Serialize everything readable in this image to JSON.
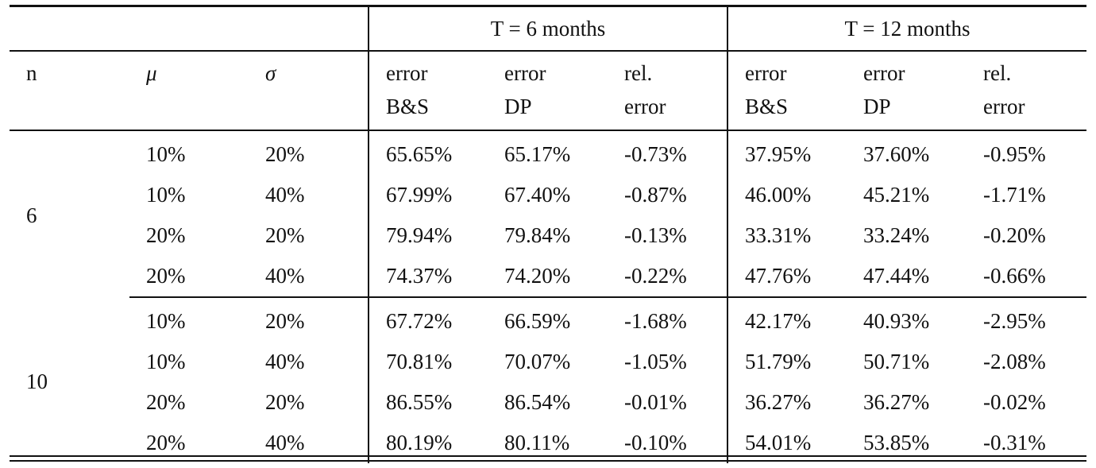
{
  "groups": {
    "t6": "T = 6 months",
    "t12": "T = 12 months"
  },
  "headers": {
    "n": "n",
    "mu": "μ",
    "sigma": "σ",
    "t6": {
      "err_bs": [
        "error",
        "B&S"
      ],
      "err_dp": [
        "error",
        "DP"
      ],
      "rel": [
        "rel.",
        "error"
      ]
    },
    "t12": {
      "err_bs": [
        "error",
        "B&S"
      ],
      "err_dp": [
        "error",
        "DP"
      ],
      "rel": [
        "rel.",
        "error"
      ]
    }
  },
  "blocks": [
    {
      "n": "6",
      "rows": [
        {
          "mu": "10%",
          "sigma": "20%",
          "t6": [
            "65.65%",
            "65.17%",
            "-0.73%"
          ],
          "t12": [
            "37.95%",
            "37.60%",
            "-0.95%"
          ]
        },
        {
          "mu": "10%",
          "sigma": "40%",
          "t6": [
            "67.99%",
            "67.40%",
            "-0.87%"
          ],
          "t12": [
            "46.00%",
            "45.21%",
            "-1.71%"
          ]
        },
        {
          "mu": "20%",
          "sigma": "20%",
          "t6": [
            "79.94%",
            "79.84%",
            "-0.13%"
          ],
          "t12": [
            "33.31%",
            "33.24%",
            "-0.20%"
          ]
        },
        {
          "mu": "20%",
          "sigma": "40%",
          "t6": [
            "74.37%",
            "74.20%",
            "-0.22%"
          ],
          "t12": [
            "47.76%",
            "47.44%",
            "-0.66%"
          ]
        }
      ]
    },
    {
      "n": "10",
      "rows": [
        {
          "mu": "10%",
          "sigma": "20%",
          "t6": [
            "67.72%",
            "66.59%",
            "-1.68%"
          ],
          "t12": [
            "42.17%",
            "40.93%",
            "-2.95%"
          ]
        },
        {
          "mu": "10%",
          "sigma": "40%",
          "t6": [
            "70.81%",
            "70.07%",
            "-1.05%"
          ],
          "t12": [
            "51.79%",
            "50.71%",
            "-2.08%"
          ]
        },
        {
          "mu": "20%",
          "sigma": "20%",
          "t6": [
            "86.55%",
            "86.54%",
            "-0.01%"
          ],
          "t12": [
            "36.27%",
            "36.27%",
            "-0.02%"
          ]
        },
        {
          "mu": "20%",
          "sigma": "40%",
          "t6": [
            "80.19%",
            "80.11%",
            "-0.10%"
          ],
          "t12": [
            "54.01%",
            "53.85%",
            "-0.31%"
          ]
        }
      ]
    }
  ]
}
